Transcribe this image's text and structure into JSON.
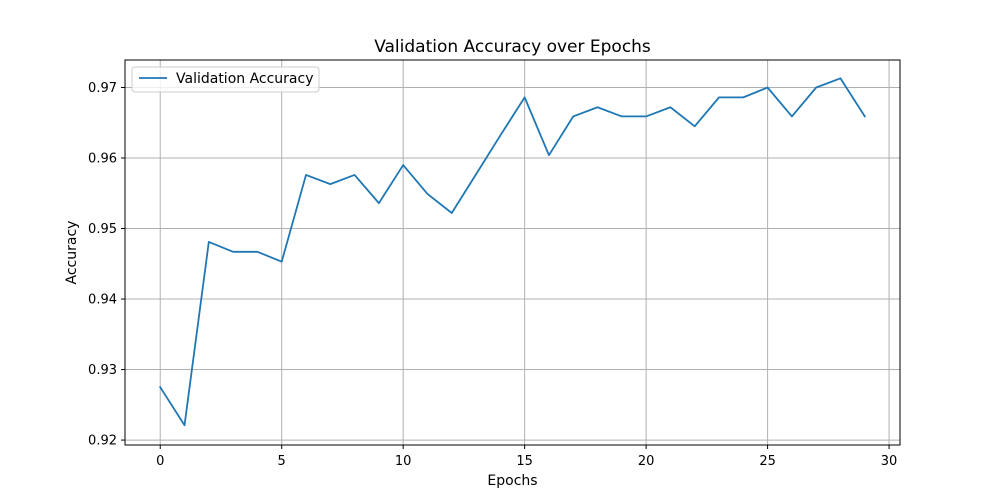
{
  "chart_data": {
    "type": "line",
    "title": "Validation Accuracy over Epochs",
    "xlabel": "Epochs",
    "ylabel": "Accuracy",
    "xlim": [
      -1.45,
      30.45
    ],
    "ylim": [
      0.9193,
      0.9739
    ],
    "xticks": [
      0,
      5,
      10,
      15,
      20,
      25,
      30
    ],
    "yticks": [
      0.92,
      0.93,
      0.94,
      0.95,
      0.96,
      0.97
    ],
    "xtick_labels": [
      "0",
      "5",
      "10",
      "15",
      "20",
      "25",
      "30"
    ],
    "ytick_labels": [
      "0.92",
      "0.93",
      "0.94",
      "0.95",
      "0.96",
      "0.97"
    ],
    "grid": true,
    "legend_position": "top-left",
    "series": [
      {
        "name": "Validation Accuracy",
        "color": "#1f77b4",
        "x": [
          0,
          1,
          2,
          3,
          4,
          5,
          6,
          7,
          8,
          9,
          10,
          11,
          12,
          13,
          14,
          15,
          16,
          17,
          18,
          19,
          20,
          21,
          22,
          23,
          24,
          25,
          26,
          27,
          28,
          29
        ],
        "y": [
          0.9275,
          0.9221,
          0.9481,
          0.9467,
          0.9467,
          0.9453,
          0.9576,
          0.9563,
          0.9576,
          0.9536,
          0.959,
          0.9549,
          0.9522,
          0.9577,
          0.9632,
          0.9686,
          0.9604,
          0.9659,
          0.9672,
          0.9659,
          0.9659,
          0.9672,
          0.9645,
          0.9686,
          0.9686,
          0.97,
          0.9659,
          0.97,
          0.9713,
          0.9659
        ]
      }
    ]
  }
}
